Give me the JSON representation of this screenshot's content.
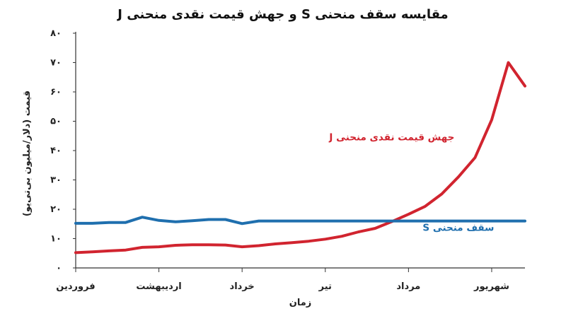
{
  "chart_data": {
    "type": "line",
    "title": "مقایسه سقف منحنی S و جهش قیمت نقدی منحنی J",
    "xlabel": "زمان",
    "ylabel": "قیمت (دلار/میلیون بی‌تی‌یو)",
    "ylim": [
      0,
      80
    ],
    "yticks": [
      0,
      10,
      20,
      30,
      40,
      50,
      60,
      70,
      80
    ],
    "ytick_labels": [
      "۰",
      "۱۰",
      "۲۰",
      "۳۰",
      "۴۰",
      "۵۰",
      "۶۰",
      "۷۰",
      "۸۰"
    ],
    "xlim": [
      0,
      5.4
    ],
    "categories": [
      "فروردین",
      "اردیبهشت",
      "خرداد",
      "تیر",
      "مرداد",
      "شهریور"
    ],
    "category_x": [
      0,
      1,
      2,
      3,
      4,
      5
    ],
    "grid": false,
    "legend": "inline",
    "series": [
      {
        "name": "جهش قیمت نقدی منحنی J",
        "color": "#d1242f",
        "x": [
          0,
          0.2,
          0.4,
          0.6,
          0.8,
          1.0,
          1.2,
          1.4,
          1.6,
          1.8,
          2.0,
          2.2,
          2.4,
          2.6,
          2.8,
          3.0,
          3.2,
          3.4,
          3.6,
          3.8,
          4.0,
          4.2,
          4.4,
          4.6,
          4.8,
          5.0,
          5.2,
          5.4
        ],
        "values": [
          5.2,
          5.5,
          5.8,
          6.1,
          7.0,
          7.2,
          7.7,
          7.9,
          7.9,
          7.8,
          7.2,
          7.6,
          8.2,
          8.6,
          9.1,
          9.8,
          10.8,
          12.3,
          13.5,
          15.8,
          18.3,
          21.0,
          25.2,
          31.0,
          37.6,
          50.5,
          70.0,
          62.0
        ]
      },
      {
        "name": "سقف منحنی S",
        "color": "#1f6fae",
        "x": [
          0,
          0.2,
          0.4,
          0.6,
          0.8,
          1.0,
          1.2,
          1.4,
          1.6,
          1.8,
          2.0,
          2.2,
          2.4,
          2.6,
          2.8,
          3.0,
          3.2,
          3.4,
          3.6,
          3.8,
          4.0,
          4.2,
          4.4,
          4.6,
          4.8,
          5.0,
          5.2,
          5.4
        ],
        "values": [
          15.2,
          15.2,
          15.5,
          15.5,
          17.3,
          16.2,
          15.7,
          16.1,
          16.5,
          16.5,
          15.1,
          16.0,
          16.0,
          16.0,
          16.0,
          16.0,
          16.0,
          16.0,
          16.0,
          16.0,
          16.0,
          16.0,
          16.0,
          16.0,
          16.0,
          16.0,
          16.0,
          16.0
        ]
      }
    ],
    "annotations": [
      {
        "text": "جهش قیمت نقدی منحنی J",
        "color": "#d1242f",
        "x": 3.8,
        "y": 43.5
      },
      {
        "text": "سقف منحنی S",
        "color": "#1f6fae",
        "x": 4.6,
        "y": 12.7
      }
    ]
  }
}
